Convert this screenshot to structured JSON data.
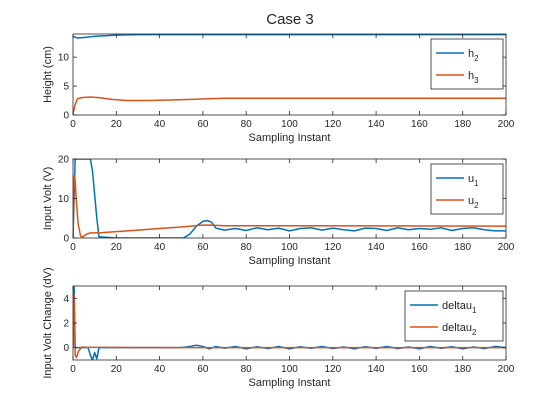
{
  "figure_title": "Case 3",
  "colors": {
    "series1": "#0072BD",
    "series2": "#D95319",
    "axis": "#262626",
    "background": "#ffffff"
  },
  "chart_data": [
    {
      "type": "line",
      "title": "Case 3",
      "xlabel": "Sampling Instant",
      "ylabel": "Height (cm)",
      "xlim": [
        0,
        200
      ],
      "ylim": [
        0,
        14
      ],
      "xticks": [
        0,
        20,
        40,
        60,
        80,
        100,
        120,
        140,
        160,
        180,
        200
      ],
      "yticks": [
        0,
        5,
        10
      ],
      "legend": "top-right",
      "grid": false,
      "series": [
        {
          "name": "h",
          "sub": "2",
          "color": "#0072BD",
          "points": [
            [
              0,
              13.6
            ],
            [
              2,
              13.3
            ],
            [
              5,
              13.4
            ],
            [
              10,
              13.6
            ],
            [
              15,
              13.7
            ],
            [
              20,
              13.8
            ],
            [
              30,
              13.9
            ],
            [
              40,
              13.9
            ],
            [
              60,
              13.9
            ],
            [
              80,
              13.9
            ],
            [
              100,
              13.9
            ],
            [
              140,
              13.9
            ],
            [
              200,
              13.9
            ]
          ]
        },
        {
          "name": "h",
          "sub": "3",
          "color": "#D95319",
          "points": [
            [
              0,
              0.2
            ],
            [
              1,
              1.8
            ],
            [
              2,
              2.8
            ],
            [
              4,
              3.0
            ],
            [
              8,
              3.1
            ],
            [
              12,
              3.0
            ],
            [
              18,
              2.7
            ],
            [
              25,
              2.5
            ],
            [
              35,
              2.5
            ],
            [
              45,
              2.6
            ],
            [
              55,
              2.7
            ],
            [
              62,
              2.8
            ],
            [
              70,
              2.9
            ],
            [
              100,
              2.9
            ],
            [
              140,
              2.9
            ],
            [
              200,
              2.9
            ]
          ]
        }
      ]
    },
    {
      "type": "line",
      "xlabel": "Sampling Instant",
      "ylabel": "Input Volt (V)",
      "xlim": [
        0,
        200
      ],
      "ylim": [
        0,
        20
      ],
      "xticks": [
        0,
        20,
        40,
        60,
        80,
        100,
        120,
        140,
        160,
        180,
        200
      ],
      "yticks": [
        0,
        10,
        20
      ],
      "legend": "top-right",
      "grid": false,
      "series": [
        {
          "name": "u",
          "sub": "1",
          "color": "#0072BD",
          "points": [
            [
              0,
              0
            ],
            [
              1,
              20
            ],
            [
              8,
              20
            ],
            [
              9,
              17
            ],
            [
              10,
              11
            ],
            [
              11,
              5
            ],
            [
              12,
              0.3
            ],
            [
              20,
              0
            ],
            [
              40,
              0
            ],
            [
              51,
              0
            ],
            [
              54,
              1
            ],
            [
              57,
              3
            ],
            [
              60,
              4.2
            ],
            [
              62,
              4.4
            ],
            [
              64,
              4
            ],
            [
              66,
              2.5
            ],
            [
              70,
              2
            ],
            [
              75,
              2.4
            ],
            [
              80,
              1.9
            ],
            [
              85,
              2.6
            ],
            [
              90,
              2.1
            ],
            [
              95,
              2.5
            ],
            [
              100,
              1.8
            ],
            [
              105,
              2.4
            ],
            [
              110,
              2.6
            ],
            [
              115,
              2
            ],
            [
              120,
              2.5
            ],
            [
              125,
              2.1
            ],
            [
              130,
              1.8
            ],
            [
              135,
              2.5
            ],
            [
              140,
              2.4
            ],
            [
              145,
              1.9
            ],
            [
              150,
              2.6
            ],
            [
              155,
              2.1
            ],
            [
              160,
              2.4
            ],
            [
              165,
              2.2
            ],
            [
              170,
              2.6
            ],
            [
              175,
              1.9
            ],
            [
              180,
              2.4
            ],
            [
              185,
              2.6
            ],
            [
              190,
              2.1
            ],
            [
              195,
              1.8
            ],
            [
              200,
              1.8
            ]
          ]
        },
        {
          "name": "u",
          "sub": "2",
          "color": "#D95319",
          "points": [
            [
              0,
              0
            ],
            [
              0.6,
              15.8
            ],
            [
              1,
              14.5
            ],
            [
              1.6,
              9
            ],
            [
              2.4,
              3.5
            ],
            [
              3.5,
              0.5
            ],
            [
              4.5,
              0.2
            ],
            [
              6,
              0.9
            ],
            [
              8,
              1.3
            ],
            [
              12,
              1.3
            ],
            [
              20,
              1.6
            ],
            [
              30,
              2
            ],
            [
              40,
              2.4
            ],
            [
              50,
              2.8
            ],
            [
              58,
              3.2
            ],
            [
              62,
              3.3
            ],
            [
              70,
              3.1
            ],
            [
              100,
              3.1
            ],
            [
              200,
              3
            ]
          ]
        }
      ]
    },
    {
      "type": "line",
      "xlabel": "Sampling Instant",
      "ylabel": "Input Volt Change (dV)",
      "xlim": [
        0,
        200
      ],
      "ylim": [
        -1,
        5
      ],
      "xticks": [
        0,
        20,
        40,
        60,
        80,
        100,
        120,
        140,
        160,
        180,
        200
      ],
      "yticks": [
        0,
        2,
        4
      ],
      "legend": "top-right",
      "grid": false,
      "series": [
        {
          "name": "deltau",
          "sub": "1",
          "color": "#0072BD",
          "points": [
            [
              0,
              0
            ],
            [
              0.5,
              5
            ],
            [
              1,
              0
            ],
            [
              7,
              0
            ],
            [
              8,
              -0.6
            ],
            [
              9,
              -1
            ],
            [
              10,
              -0.4
            ],
            [
              11,
              -0.9
            ],
            [
              12,
              0
            ],
            [
              50,
              0
            ],
            [
              54,
              0.1
            ],
            [
              57,
              0.2
            ],
            [
              60,
              0.1
            ],
            [
              63,
              -0.1
            ],
            [
              66,
              0.1
            ],
            [
              70,
              -0.05
            ],
            [
              75,
              0.1
            ],
            [
              80,
              -0.1
            ],
            [
              85,
              0.08
            ],
            [
              90,
              -0.08
            ],
            [
              95,
              0.1
            ],
            [
              100,
              -0.1
            ],
            [
              105,
              0.08
            ],
            [
              110,
              -0.06
            ],
            [
              115,
              0.1
            ],
            [
              120,
              -0.08
            ],
            [
              125,
              0.06
            ],
            [
              130,
              -0.1
            ],
            [
              135,
              0.08
            ],
            [
              140,
              -0.06
            ],
            [
              145,
              0.1
            ],
            [
              150,
              -0.08
            ],
            [
              155,
              0.06
            ],
            [
              160,
              -0.1
            ],
            [
              165,
              0.1
            ],
            [
              170,
              -0.06
            ],
            [
              175,
              0.08
            ],
            [
              180,
              -0.1
            ],
            [
              185,
              0.06
            ],
            [
              190,
              -0.08
            ],
            [
              195,
              0.1
            ],
            [
              200,
              0
            ]
          ]
        },
        {
          "name": "deltau",
          "sub": "2",
          "color": "#D95319",
          "points": [
            [
              0,
              0
            ],
            [
              0.5,
              4.3
            ],
            [
              1,
              -0.6
            ],
            [
              1.6,
              -0.8
            ],
            [
              2.5,
              -0.3
            ],
            [
              4,
              0.05
            ],
            [
              6,
              0.03
            ],
            [
              20,
              0.02
            ],
            [
              60,
              0
            ],
            [
              200,
              0
            ]
          ]
        }
      ]
    }
  ]
}
